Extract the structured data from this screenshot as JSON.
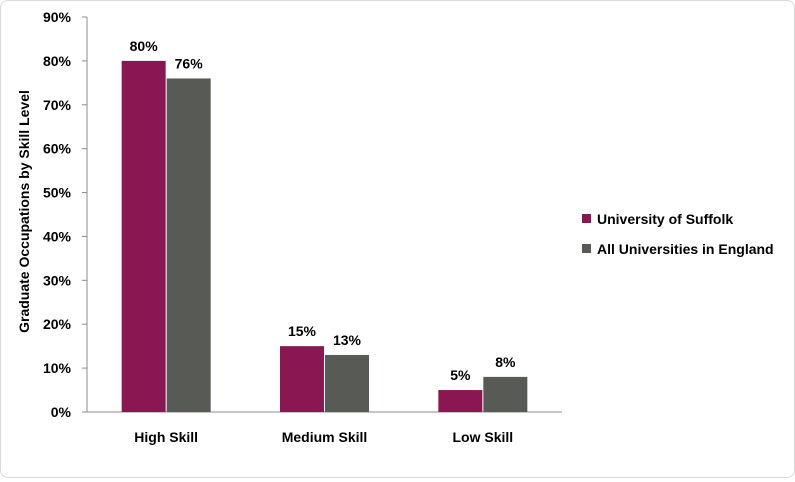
{
  "chart_data": {
    "type": "bar",
    "categories": [
      "High Skill",
      "Medium Skill",
      "Low Skill"
    ],
    "series": [
      {
        "name": "University of Suffolk",
        "values": [
          80,
          15,
          5
        ],
        "labels": [
          "80%",
          "15%",
          "5%"
        ],
        "color": "#8a1652"
      },
      {
        "name": "All Universities in England",
        "values": [
          76,
          13,
          8
        ],
        "labels": [
          "76%",
          "13%",
          "8%"
        ],
        "color": "#575a55"
      }
    ],
    "ylabel": "Graduate Occupations by Skill Level",
    "xlabel": "",
    "ylim": [
      0,
      90
    ],
    "yticks": [
      "0%",
      "10%",
      "20%",
      "30%",
      "40%",
      "50%",
      "60%",
      "70%",
      "80%",
      "90%"
    ],
    "grid": false,
    "legend_position": "right"
  }
}
